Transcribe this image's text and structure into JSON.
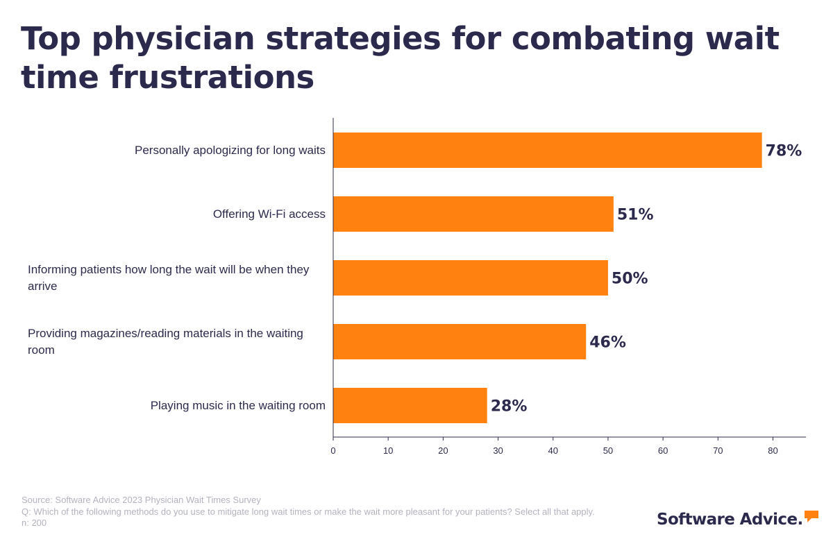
{
  "title": "Top physician strategies for combating wait time frustrations",
  "chart_data": {
    "type": "bar",
    "orientation": "horizontal",
    "categories": [
      "Personally apologizing for long waits",
      "Offering Wi-Fi access",
      "Informing patients how long the wait will be when they arrive",
      "Providing magazines/reading materials in the waiting room",
      "Playing music in the waiting room"
    ],
    "values": [
      78,
      51,
      50,
      46,
      28
    ],
    "value_labels": [
      "78%",
      "51%",
      "50%",
      "46%",
      "28%"
    ],
    "xlim": [
      0,
      86
    ],
    "xticks": [
      0,
      10,
      20,
      30,
      40,
      50,
      60,
      70,
      80
    ],
    "xlabel": "",
    "ylabel": "",
    "grid": false,
    "bar_color": "#ff8210"
  },
  "footer": {
    "source": "Source: Software Advice 2023 Physician Wait Times Survey",
    "question": "Q: Which of the following methods do you use to mitigate long wait times or make the wait more pleasant for your patients? Select all that apply.",
    "n": "n: 200"
  },
  "logo": {
    "text": "Software Advice.",
    "icon": "speech-bubble-icon",
    "accent_color": "#ff8210"
  },
  "colors": {
    "text": "#2b2a4c",
    "muted": "#b3b3bf",
    "axis": "#2b2a4c"
  }
}
